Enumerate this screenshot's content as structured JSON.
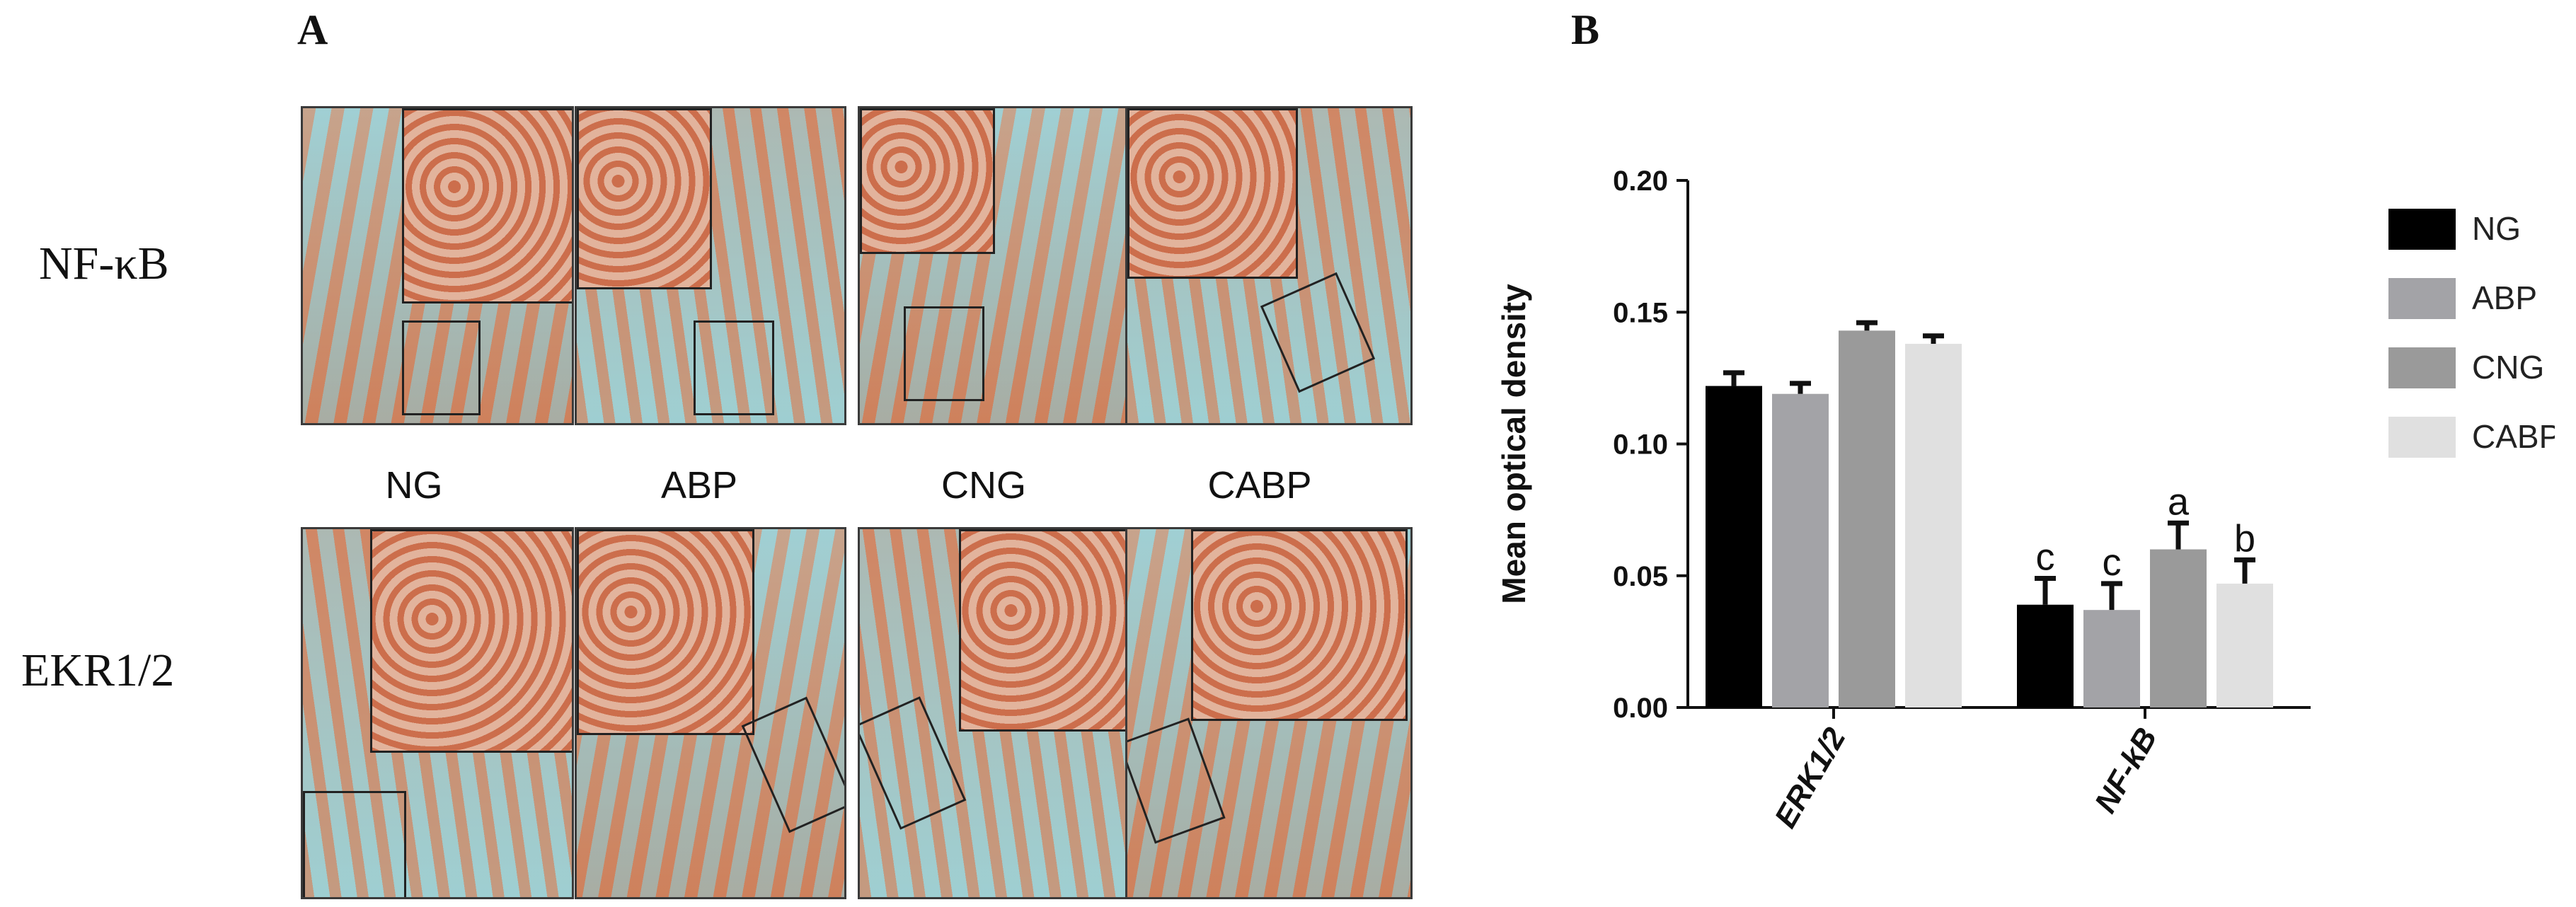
{
  "panel_a": {
    "letter": "A",
    "row_labels": [
      "NF-κB",
      "EKR1/2"
    ],
    "group_labels": [
      "NG",
      "ABP",
      "CNG",
      "CABP"
    ]
  },
  "panel_b": {
    "letter": "B"
  },
  "colors": {
    "NG": "#000000",
    "ABP": "#a3a3a7",
    "CNG": "#9a9a9a",
    "CABP": "#e0e0e0"
  },
  "chart_data": {
    "type": "bar",
    "categories": [
      "ERK1/2",
      "NF-kB"
    ],
    "ylabel": "Mean optical density",
    "xlabel": "",
    "ylim": [
      0,
      0.2
    ],
    "yticks": [
      "0.00",
      "0.05",
      "0.10",
      "0.15",
      "0.20"
    ],
    "legend_position": "top-right",
    "series": [
      {
        "name": "NG",
        "values": [
          0.122,
          0.039
        ],
        "errors": [
          0.005,
          0.01
        ],
        "labels": [
          "",
          "c"
        ]
      },
      {
        "name": "ABP",
        "values": [
          0.119,
          0.037
        ],
        "errors": [
          0.004,
          0.01
        ],
        "labels": [
          "",
          "c"
        ]
      },
      {
        "name": "CNG",
        "values": [
          0.143,
          0.06
        ],
        "errors": [
          0.003,
          0.01
        ],
        "labels": [
          "",
          "a"
        ]
      },
      {
        "name": "CABP",
        "values": [
          0.138,
          0.047
        ],
        "errors": [
          0.003,
          0.009
        ],
        "labels": [
          "",
          "b"
        ]
      }
    ]
  }
}
